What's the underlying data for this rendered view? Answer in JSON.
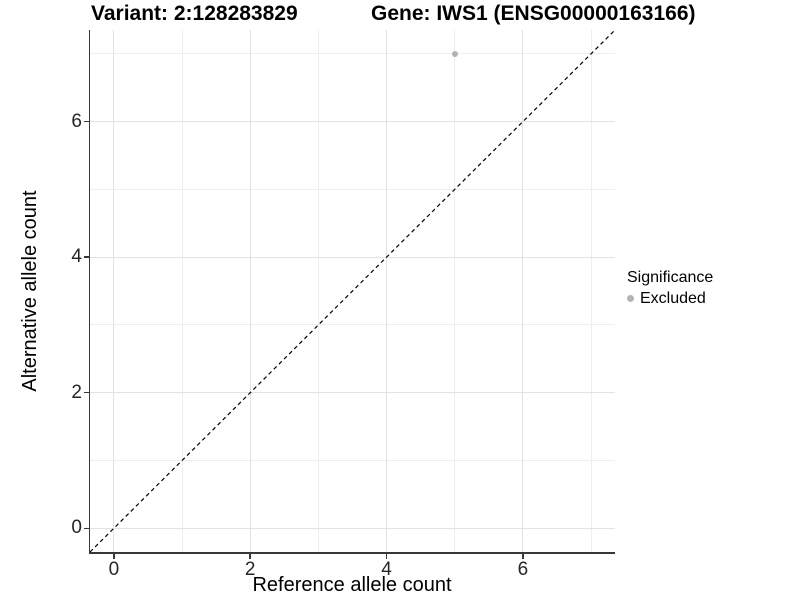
{
  "title": {
    "variant": "Variant: 2:128283829",
    "gene": "Gene: IWS1 (ENSG00000163166)"
  },
  "x_axis": {
    "label": "Reference allele count"
  },
  "y_axis": {
    "label": "Alternative allele count"
  },
  "legend": {
    "title": "Significance",
    "items": [
      {
        "label": "Excluded",
        "color": "#b3b3b3"
      }
    ]
  },
  "colors": {
    "axis_line": "#383838",
    "grid_major": "#e2e2e2",
    "grid_minor": "#eeeeee",
    "reference_line": "#000000",
    "point_excluded": "#b3b3b3"
  },
  "chart_data": {
    "type": "scatter",
    "title": "Variant: 2:128283829   Gene: IWS1 (ENSG00000163166)",
    "xlabel": "Reference allele count",
    "ylabel": "Alternative allele count",
    "xlim": [
      -0.35,
      7.35
    ],
    "ylim": [
      -0.35,
      7.35
    ],
    "x_major_ticks": [
      0,
      2,
      4,
      6
    ],
    "y_major_ticks": [
      0,
      2,
      4,
      6
    ],
    "x_tick_labels": [
      "0",
      "2",
      "4",
      "6"
    ],
    "y_tick_labels": [
      "0",
      "2",
      "4",
      "6"
    ],
    "x_minor_gridlines": [
      1,
      3,
      5,
      7
    ],
    "y_minor_gridlines": [
      1,
      3,
      5,
      7
    ],
    "grid": true,
    "legend_position": "right",
    "series": [
      {
        "name": "Excluded",
        "color": "#b3b3b3",
        "points": [
          {
            "x": 5,
            "y": 7
          }
        ]
      }
    ],
    "reference_line": {
      "type": "identity",
      "style": "dashed",
      "color": "#000000",
      "from": [
        -0.35,
        -0.35
      ],
      "to": [
        7.35,
        7.35
      ]
    }
  }
}
